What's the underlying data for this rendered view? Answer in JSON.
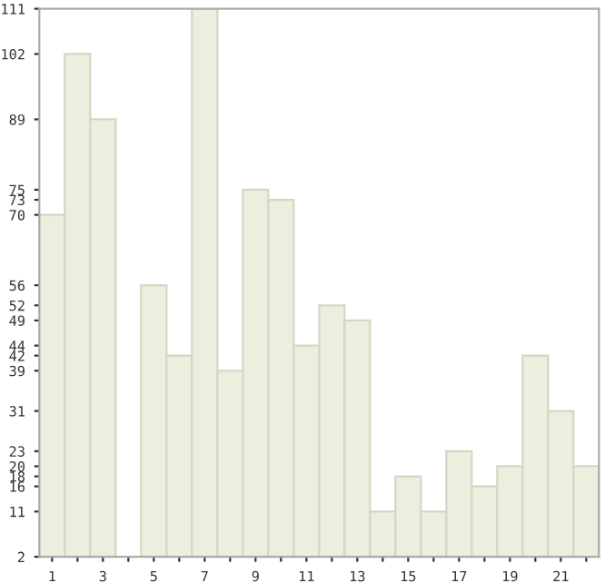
{
  "chart_data": {
    "type": "bar",
    "categories": [
      "1",
      null,
      "3",
      null,
      "5",
      null,
      "7",
      null,
      "9",
      null,
      "11",
      null,
      "13",
      null,
      "15",
      null,
      "17",
      null,
      "19",
      null,
      "21",
      null
    ],
    "values": [
      70,
      102,
      89,
      2,
      56,
      42,
      111,
      39,
      75,
      73,
      44,
      52,
      49,
      11,
      18,
      11,
      23,
      16,
      20,
      42,
      31,
      20
    ],
    "color": "#eeeedf",
    "ylim": [
      2,
      111
    ],
    "yticks": [
      2,
      11,
      16,
      18,
      20,
      23,
      31,
      39,
      42,
      44,
      49,
      52,
      56,
      70,
      73,
      75,
      89,
      102,
      111
    ],
    "grid": false
  }
}
